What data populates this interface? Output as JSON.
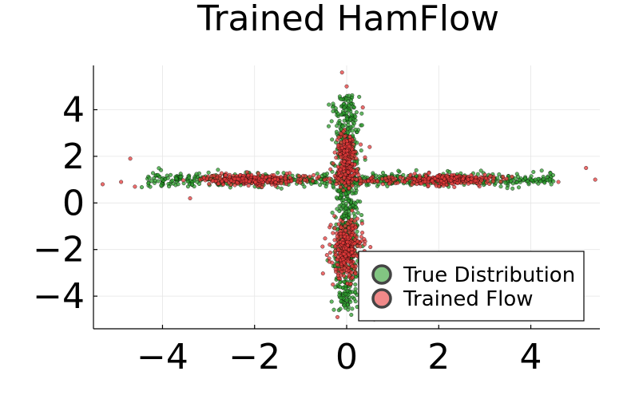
{
  "chart_data": {
    "type": "scatter",
    "title": "Trained HamFlow",
    "xlabel": "",
    "ylabel": "",
    "xlim": [
      -5.5,
      5.5
    ],
    "ylim": [
      -5.4,
      5.9
    ],
    "x_ticks": [
      -4,
      -2,
      0,
      2,
      4
    ],
    "y_ticks": [
      -4,
      -2,
      0,
      2,
      4
    ],
    "x_tick_labels": [
      "−4",
      "−2",
      "0",
      "2",
      "4"
    ],
    "y_tick_labels": [
      "−4",
      "−2",
      "0",
      "2",
      "4"
    ],
    "grid": true,
    "legend_position": "bottom-right",
    "series": [
      {
        "name": "True Distribution",
        "color": "#2e9e2e",
        "description": "cross-shaped samples: horizontal arm along y≈1 (x from -5 to 5), vertical arm along x≈0 (y from -5 to 5)",
        "clusters": [
          {
            "cx": 0.0,
            "cy": 1.0,
            "sx": 2.5,
            "sy": 0.14,
            "n": 650
          },
          {
            "cx": 0.0,
            "cy": 0.0,
            "sx": 0.14,
            "sy": 2.1,
            "n": 650
          }
        ],
        "extremes": [
          {
            "x": 3.6,
            "y": 1.1
          },
          {
            "x": 4.1,
            "y": 1.0
          },
          {
            "x": -4.1,
            "y": 1.2
          },
          {
            "x": -3.0,
            "y": 1.3
          },
          {
            "x": 0.05,
            "y": 4.6
          },
          {
            "x": 0.1,
            "y": 3.8
          },
          {
            "x": -0.05,
            "y": -4.4
          },
          {
            "x": 0.1,
            "y": -4.8
          },
          {
            "x": -0.15,
            "y": 3.4
          }
        ]
      },
      {
        "name": "Trained Flow",
        "color": "#e63b3b",
        "description": "flow samples concentrated in clusters near (-2,1), (2.3,1), (0,2.3), (0,1.2) and a large cluster near (0,-2)",
        "clusters": [
          {
            "cx": -2.2,
            "cy": 1.0,
            "sx": 0.45,
            "sy": 0.11,
            "n": 230
          },
          {
            "cx": 2.3,
            "cy": 1.0,
            "sx": 0.45,
            "sy": 0.11,
            "n": 230
          },
          {
            "cx": 0.0,
            "cy": 2.3,
            "sx": 0.11,
            "sy": 0.35,
            "n": 130
          },
          {
            "cx": 0.0,
            "cy": 1.3,
            "sx": 0.11,
            "sy": 0.3,
            "n": 110
          },
          {
            "cx": 0.0,
            "cy": -2.0,
            "sx": 0.17,
            "sy": 0.6,
            "n": 330
          },
          {
            "cx": 0.0,
            "cy": 1.0,
            "sx": 1.3,
            "sy": 0.12,
            "n": 140
          }
        ],
        "extremes": [
          {
            "x": -5.3,
            "y": 0.8
          },
          {
            "x": -4.7,
            "y": 1.9
          },
          {
            "x": -4.9,
            "y": 0.9
          },
          {
            "x": -4.6,
            "y": 0.7
          },
          {
            "x": -3.4,
            "y": 0.2
          },
          {
            "x": 5.4,
            "y": 1.0
          },
          {
            "x": 5.2,
            "y": 1.5
          },
          {
            "x": 4.6,
            "y": 0.9
          },
          {
            "x": -0.1,
            "y": 5.6
          },
          {
            "x": 0.0,
            "y": 5.0
          },
          {
            "x": 0.35,
            "y": 4.1
          },
          {
            "x": 0.5,
            "y": 2.4
          },
          {
            "x": 0.6,
            "y": -5.0
          },
          {
            "x": -0.2,
            "y": -4.9
          },
          {
            "x": -0.3,
            "y": -3.5
          }
        ]
      }
    ]
  }
}
